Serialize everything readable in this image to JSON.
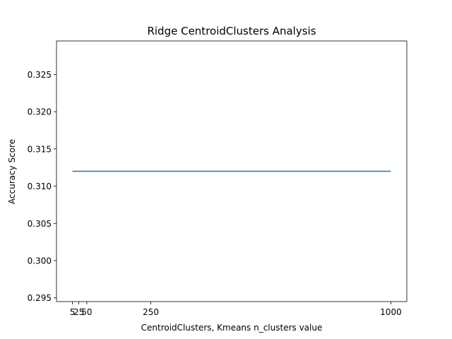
{
  "chart_data": {
    "type": "line",
    "title": "Ridge CentroidClusters Analysis",
    "xlabel": "CentroidClusters, Kmeans n_clusters value",
    "ylabel": "Accuracy Score",
    "x": [
      5,
      25,
      50,
      250,
      1000
    ],
    "x_ticks": [
      5,
      25,
      50,
      250,
      1000
    ],
    "x_tick_labels": [
      "5",
      "25",
      "50",
      "250",
      "1000"
    ],
    "y_ticks": [
      0.295,
      0.3,
      0.305,
      0.31,
      0.315,
      0.32,
      0.325
    ],
    "y_tick_labels": [
      "0.295",
      "0.300",
      "0.305",
      "0.310",
      "0.315",
      "0.320",
      "0.325"
    ],
    "xlim": [
      -44.75,
      1049.75
    ],
    "ylim": [
      0.2945,
      0.3295
    ],
    "grid": false,
    "series": [
      {
        "values": [
          0.312,
          0.312,
          0.312,
          0.312,
          0.312
        ],
        "color": "#1f77b4"
      }
    ]
  }
}
